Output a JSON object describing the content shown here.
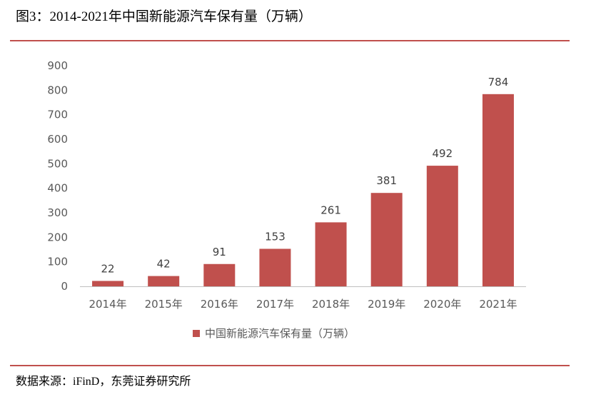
{
  "header": {
    "title": "图3：2014-2021年中国新能源汽车保有量（万辆）"
  },
  "footer": {
    "source": "数据来源：iFinD，东莞证券研究所"
  },
  "colors": {
    "accent": "#c0504d",
    "bar": "#c0504d",
    "axis": "#bfbfbf"
  },
  "chart_data": {
    "type": "bar",
    "title": "",
    "categories": [
      "2014年",
      "2015年",
      "2016年",
      "2017年",
      "2018年",
      "2019年",
      "2020年",
      "2021年"
    ],
    "series": [
      {
        "name": "中国新能源汽车保有量（万辆）",
        "values": [
          22,
          42,
          91,
          153,
          261,
          381,
          492,
          784
        ]
      }
    ],
    "xlabel": "",
    "ylabel": "",
    "ylim": [
      0,
      900
    ],
    "yticks": [
      0,
      100,
      200,
      300,
      400,
      500,
      600,
      700,
      800,
      900
    ],
    "grid": false,
    "legend": "bottom",
    "data_labels": true
  }
}
